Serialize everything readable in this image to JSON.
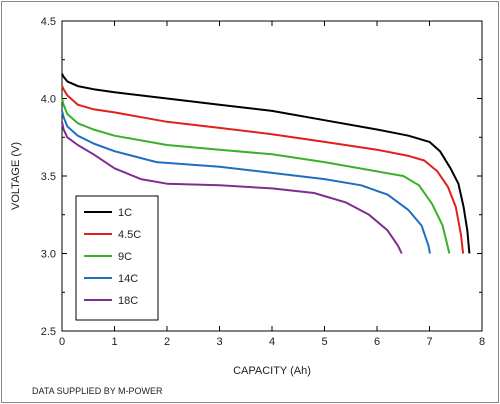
{
  "chart_data": {
    "type": "line",
    "title": "",
    "xlabel": "CAPACITY (Ah)",
    "ylabel": "VOLTAGE (V)",
    "xlim": [
      0,
      8
    ],
    "ylim": [
      2.5,
      4.5
    ],
    "x_ticks": [
      "0",
      "1",
      "2",
      "3",
      "4",
      "5",
      "6",
      "7",
      "8"
    ],
    "y_ticks": [
      "2.5",
      "3.0",
      "3.5",
      "4.0",
      "4.5"
    ],
    "grid": false,
    "legend_placement": "bottom-left",
    "series": [
      {
        "name": "1C",
        "color": "#000000",
        "points": [
          [
            0,
            4.16
          ],
          [
            0.03,
            4.14
          ],
          [
            0.1,
            4.11
          ],
          [
            0.3,
            4.08
          ],
          [
            0.6,
            4.06
          ],
          [
            1.0,
            4.04
          ],
          [
            2.0,
            4.0
          ],
          [
            3.0,
            3.96
          ],
          [
            4.0,
            3.92
          ],
          [
            5.0,
            3.86
          ],
          [
            6.0,
            3.8
          ],
          [
            6.6,
            3.76
          ],
          [
            7.0,
            3.72
          ],
          [
            7.2,
            3.66
          ],
          [
            7.4,
            3.55
          ],
          [
            7.55,
            3.45
          ],
          [
            7.65,
            3.3
          ],
          [
            7.72,
            3.15
          ],
          [
            7.76,
            3.0
          ]
        ]
      },
      {
        "name": "4.5C",
        "color": "#e0201c",
        "points": [
          [
            0,
            4.08
          ],
          [
            0.03,
            4.06
          ],
          [
            0.1,
            4.02
          ],
          [
            0.3,
            3.96
          ],
          [
            0.6,
            3.93
          ],
          [
            1.0,
            3.91
          ],
          [
            2.0,
            3.85
          ],
          [
            3.0,
            3.81
          ],
          [
            4.0,
            3.77
          ],
          [
            5.0,
            3.72
          ],
          [
            6.0,
            3.67
          ],
          [
            6.6,
            3.63
          ],
          [
            6.9,
            3.6
          ],
          [
            7.15,
            3.53
          ],
          [
            7.35,
            3.43
          ],
          [
            7.5,
            3.3
          ],
          [
            7.6,
            3.12
          ],
          [
            7.64,
            3.0
          ]
        ]
      },
      {
        "name": "9C",
        "color": "#3ab02a",
        "points": [
          [
            0,
            4.0
          ],
          [
            0.03,
            3.96
          ],
          [
            0.1,
            3.9
          ],
          [
            0.3,
            3.84
          ],
          [
            0.6,
            3.8
          ],
          [
            1.0,
            3.76
          ],
          [
            2.0,
            3.7
          ],
          [
            3.0,
            3.67
          ],
          [
            4.0,
            3.64
          ],
          [
            5.0,
            3.59
          ],
          [
            6.0,
            3.53
          ],
          [
            6.5,
            3.5
          ],
          [
            6.8,
            3.44
          ],
          [
            7.05,
            3.32
          ],
          [
            7.25,
            3.18
          ],
          [
            7.38,
            3.0
          ]
        ]
      },
      {
        "name": "14C",
        "color": "#1e6fc0",
        "points": [
          [
            0,
            3.92
          ],
          [
            0.03,
            3.88
          ],
          [
            0.1,
            3.82
          ],
          [
            0.3,
            3.76
          ],
          [
            0.6,
            3.71
          ],
          [
            1.0,
            3.66
          ],
          [
            1.8,
            3.59
          ],
          [
            3.0,
            3.56
          ],
          [
            4.0,
            3.52
          ],
          [
            5.0,
            3.48
          ],
          [
            5.7,
            3.44
          ],
          [
            6.2,
            3.38
          ],
          [
            6.6,
            3.28
          ],
          [
            6.85,
            3.18
          ],
          [
            6.98,
            3.05
          ],
          [
            7.01,
            3.0
          ]
        ]
      },
      {
        "name": "18C",
        "color": "#7e2e8e",
        "points": [
          [
            0,
            3.85
          ],
          [
            0.03,
            3.8
          ],
          [
            0.1,
            3.75
          ],
          [
            0.3,
            3.7
          ],
          [
            0.6,
            3.64
          ],
          [
            1.0,
            3.55
          ],
          [
            1.5,
            3.48
          ],
          [
            2.0,
            3.45
          ],
          [
            3.0,
            3.44
          ],
          [
            4.0,
            3.42
          ],
          [
            4.8,
            3.39
          ],
          [
            5.4,
            3.33
          ],
          [
            5.85,
            3.25
          ],
          [
            6.2,
            3.15
          ],
          [
            6.4,
            3.05
          ],
          [
            6.47,
            3.0
          ]
        ]
      }
    ]
  },
  "footnote": "DATA SUPPLIED BY M-POWER"
}
